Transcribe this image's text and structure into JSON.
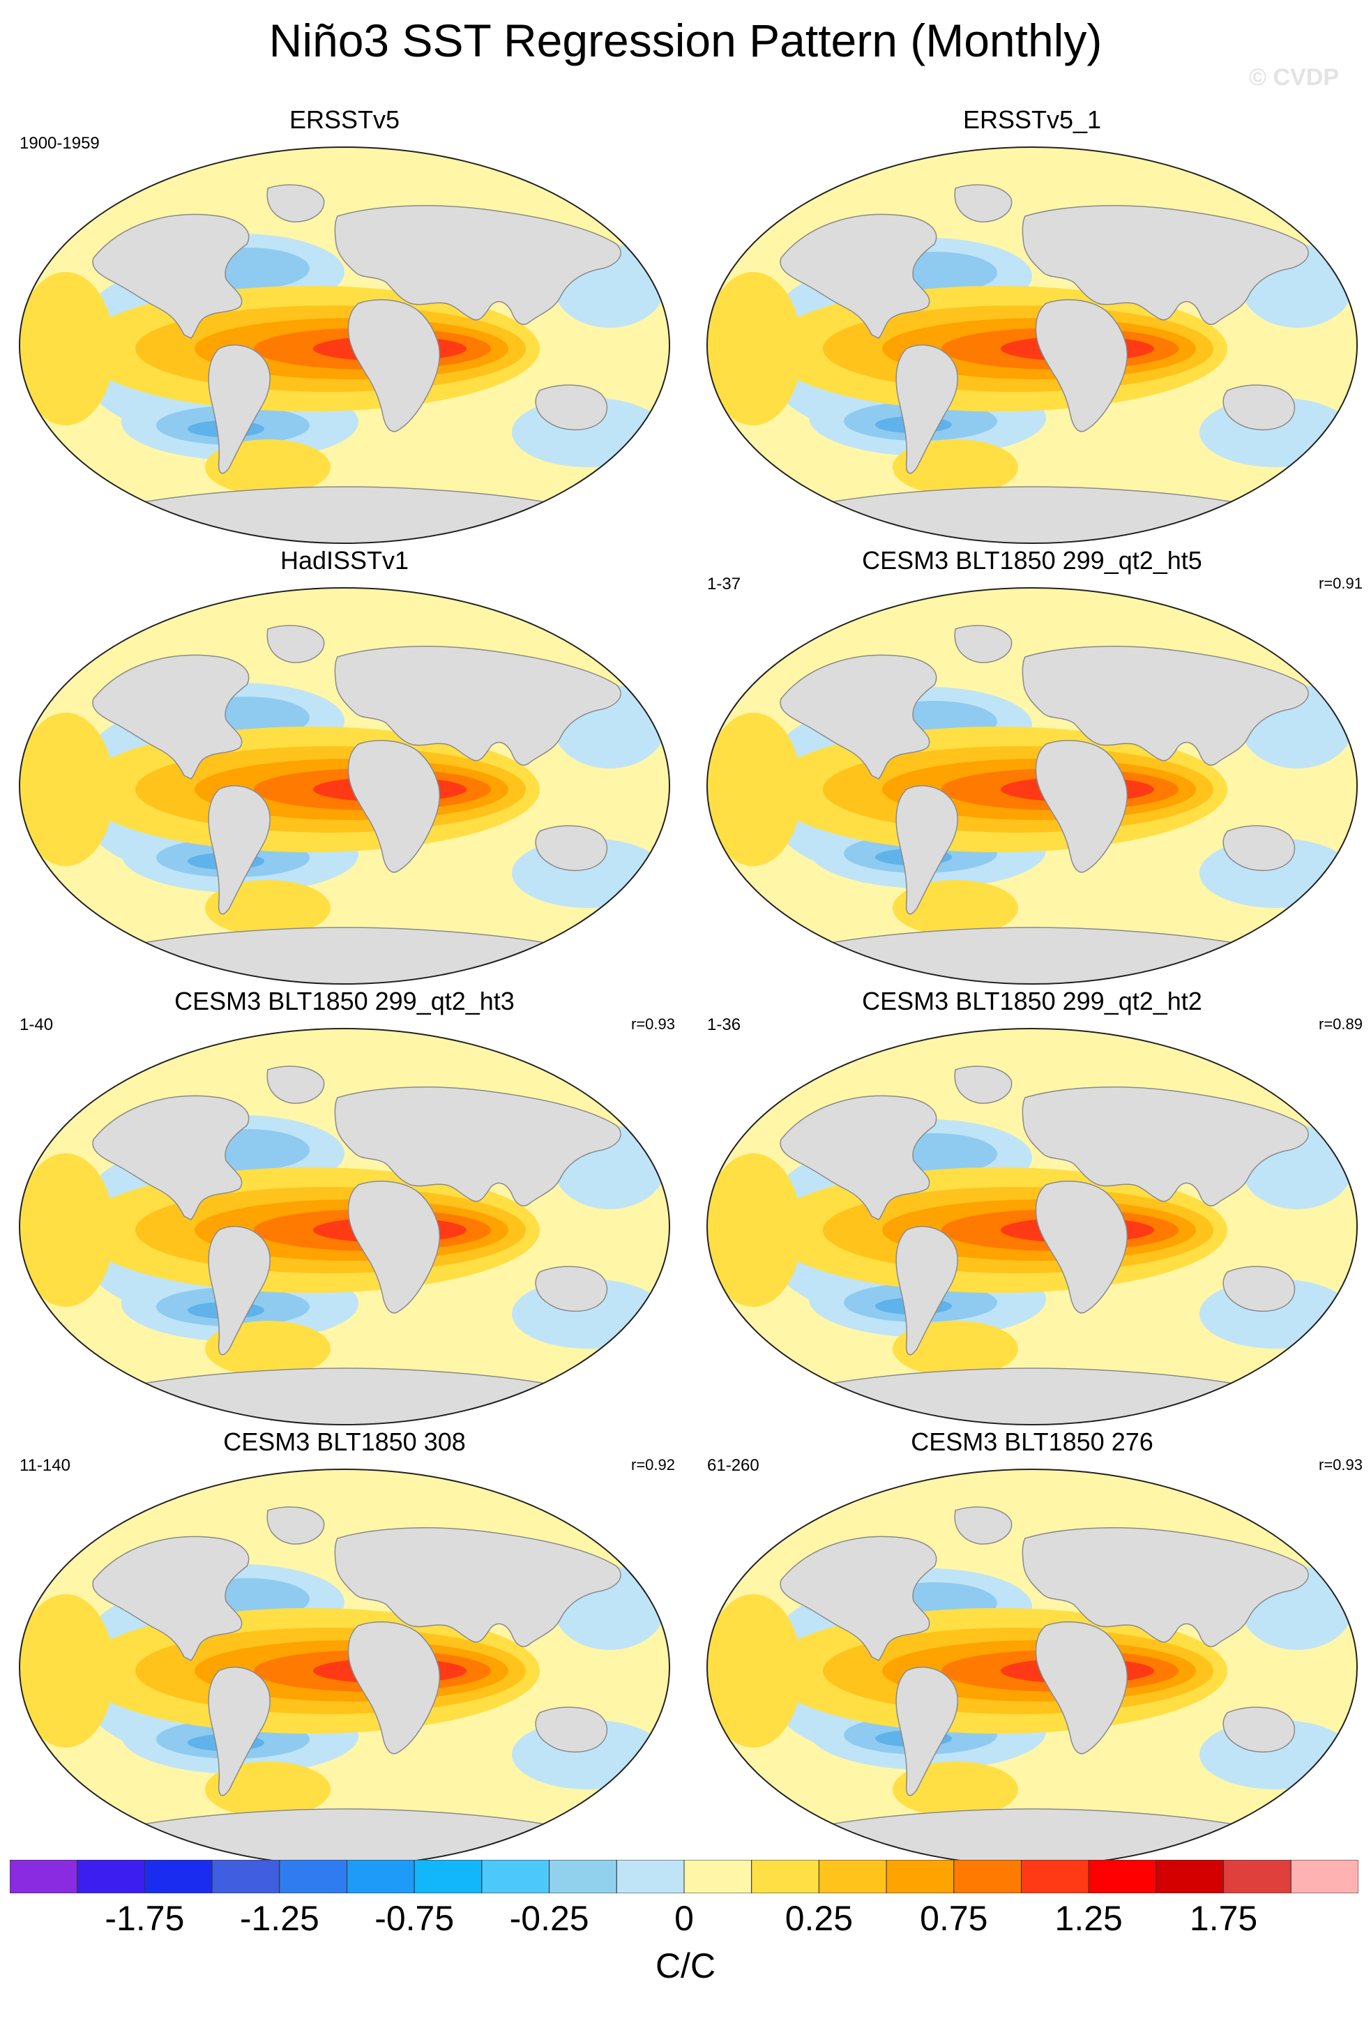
{
  "title": "Niño3 SST Regression Pattern (Monthly)",
  "watermark": "© CVDP",
  "panels": [
    {
      "title": "ERSSTv5",
      "left": "1900-1959",
      "right": "",
      "variant": 0
    },
    {
      "title": "ERSSTv5_1",
      "left": "",
      "right": "",
      "variant": 1
    },
    {
      "title": "HadISSTv1",
      "left": "",
      "right": "",
      "variant": 2
    },
    {
      "title": "CESM3 BLT1850 299_qt2_ht5",
      "left": "1-37",
      "right": "r=0.91",
      "variant": 3
    },
    {
      "title": "CESM3 BLT1850 299_qt2_ht3",
      "left": "1-40",
      "right": "r=0.93",
      "variant": 4
    },
    {
      "title": "CESM3 BLT1850 299_qt2_ht2",
      "left": "1-36",
      "right": "r=0.89",
      "variant": 5
    },
    {
      "title": "CESM3 BLT1850 308",
      "left": "11-140",
      "right": "r=0.92",
      "variant": 6
    },
    {
      "title": "CESM3 BLT1850 276",
      "left": "61-260",
      "right": "r=0.93",
      "variant": 7
    }
  ],
  "colorbar": {
    "colors": [
      "#8a2be2",
      "#3c1ef0",
      "#1a2cf0",
      "#3f5ee0",
      "#2f7cf0",
      "#1e9bf8",
      "#12b7fb",
      "#4cc8fb",
      "#92d1ee",
      "#bfe4f7",
      "#fff6a8",
      "#ffdf44",
      "#ffc31c",
      "#ffa300",
      "#ff7a00",
      "#ff3a14",
      "#ff0000",
      "#d40000",
      "#e0403c",
      "#ffb2b2"
    ],
    "labels": [
      "-1.75",
      "-1.25",
      "-0.75",
      "-0.25",
      "0",
      "0.25",
      "0.75",
      "1.25",
      "1.75"
    ],
    "units": "C/C"
  },
  "map_colors": {
    "land": "#dcdcdc",
    "neg_light": "#bfe4f7",
    "neg_mid": "#8fcbf0",
    "neg_strong": "#5fb2ea",
    "pos_light": "#fff6a8",
    "pos_mid": "#ffdf44",
    "pos_strong": "#ffc31c",
    "orange": "#ffa300",
    "orange_dark": "#ff7a00",
    "red": "#ff3a14",
    "dark_red": "#e00000"
  }
}
